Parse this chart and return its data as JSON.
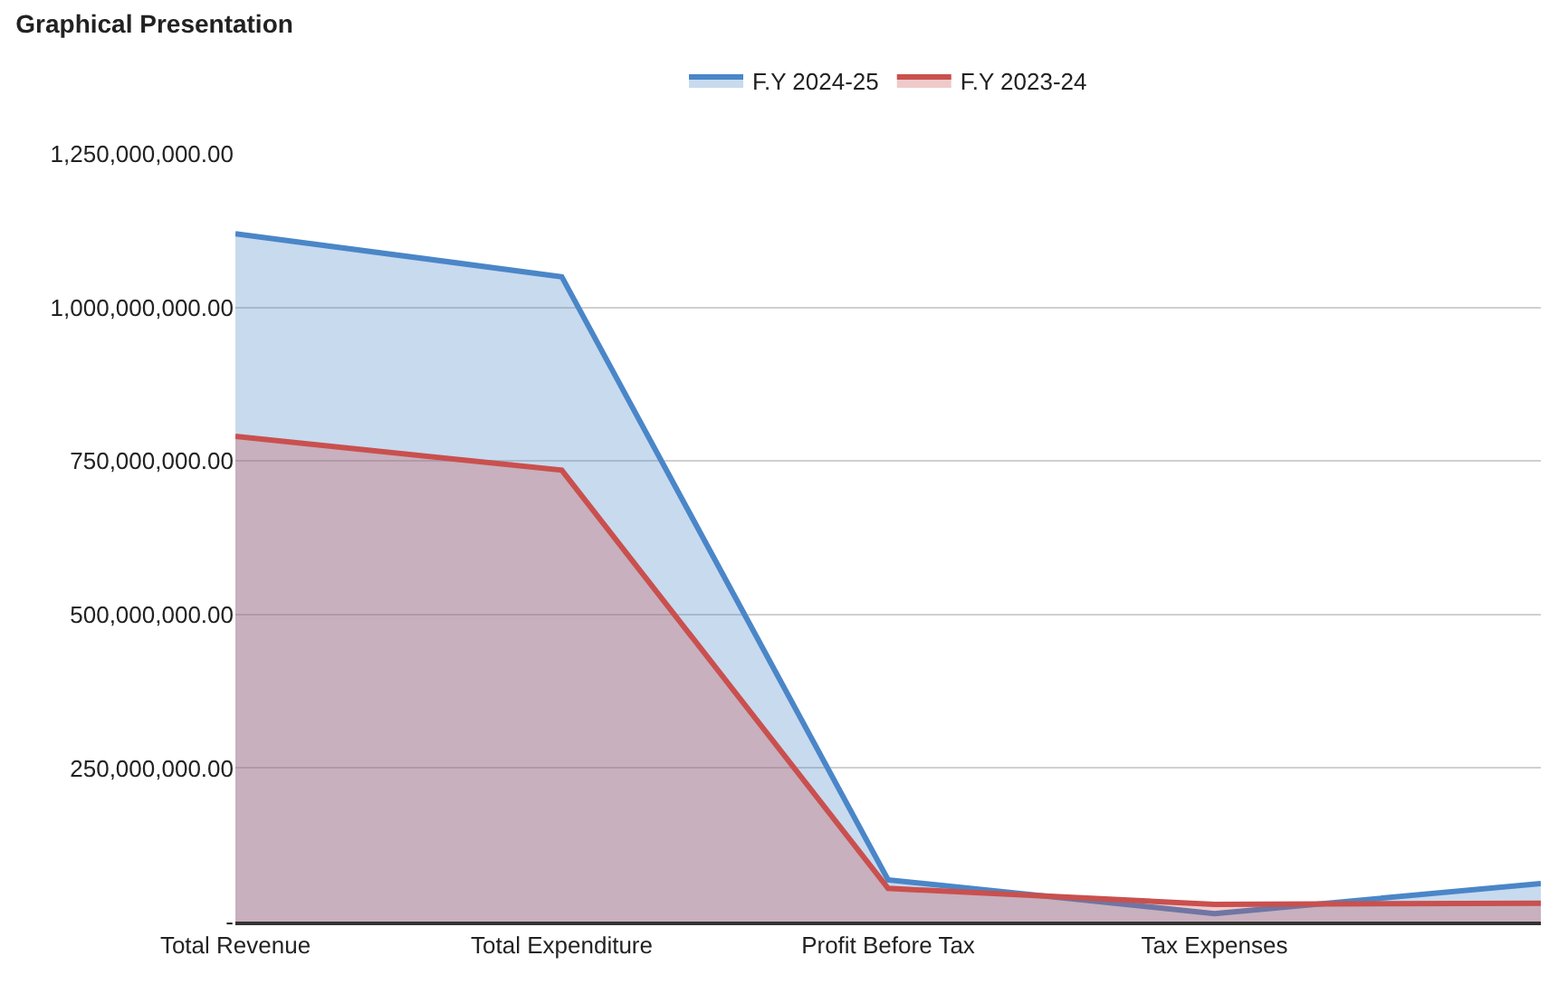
{
  "chart_data": {
    "type": "area",
    "title": "Graphical Presentation",
    "categories": [
      "Total Revenue",
      "Total Expenditure",
      "Profit Before Tax",
      "Tax Expenses",
      null
    ],
    "series": [
      {
        "name": "F.Y 2024-25",
        "color": "#4a86c8",
        "values": [
          1120000000,
          1050000000,
          68000000,
          13000000,
          62000000
        ]
      },
      {
        "name": "F.Y 2023-24",
        "color": "#c9504e",
        "values": [
          790000000,
          735000000,
          54000000,
          28000000,
          30000000
        ]
      }
    ],
    "ylim": [
      0,
      1250000000
    ],
    "yticks": [
      {
        "value": 0,
        "label": "-"
      },
      {
        "value": 250000000,
        "label": "250,000,000.00"
      },
      {
        "value": 500000000,
        "label": "500,000,000.00"
      },
      {
        "value": 750000000,
        "label": "750,000,000.00"
      },
      {
        "value": 1000000000,
        "label": "1,000,000,000.00"
      },
      {
        "value": 1250000000,
        "label": "1,250,000,000.00"
      }
    ],
    "grid": "y",
    "legend": "top"
  }
}
